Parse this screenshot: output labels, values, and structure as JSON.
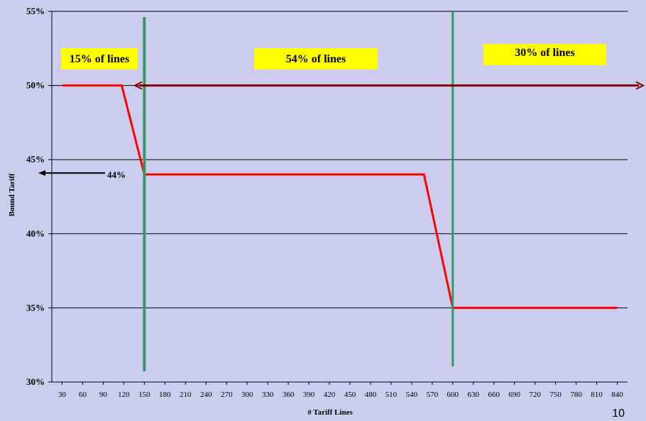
{
  "page_number": "10",
  "colors": {
    "background": "#ccccee",
    "line": "#ff0000",
    "divider": "#339966",
    "arrow_long": "#800000",
    "arrow_short": "#000000",
    "label_box": "#ffff00",
    "grid": "#000000"
  },
  "chart_data": {
    "type": "line",
    "xlabel": "# Tariff Lines",
    "ylabel": "Bound Tariff",
    "x_ticks": [
      30,
      60,
      90,
      120,
      150,
      180,
      210,
      240,
      270,
      300,
      330,
      360,
      390,
      420,
      450,
      480,
      510,
      540,
      570,
      600,
      630,
      660,
      690,
      720,
      750,
      780,
      810,
      840
    ],
    "x_tick_labels": [
      "30",
      "60",
      "90",
      "120",
      "150",
      "180",
      "210",
      "240",
      "270",
      "300",
      "330",
      "360",
      "390",
      "420",
      "450",
      "480",
      "510",
      "540",
      "570",
      "600",
      "630",
      "660",
      "690",
      "720",
      "750",
      "780",
      "810",
      "840"
    ],
    "xlim": [
      15,
      855
    ],
    "ylim": [
      30,
      55
    ],
    "y_ticks": [
      30,
      35,
      40,
      45,
      50,
      55
    ],
    "y_tick_labels": [
      "30%",
      "35%",
      "40%",
      "45%",
      "50%",
      "55%"
    ],
    "grid": "horizontal",
    "legend": "none",
    "series": [
      {
        "points": [
          [
            30,
            50
          ],
          [
            117,
            50
          ],
          [
            150,
            44
          ],
          [
            558,
            44
          ],
          [
            600,
            35
          ],
          [
            840,
            35
          ]
        ]
      }
    ],
    "vertical_lines": [
      150,
      600
    ],
    "region_labels": [
      "15% of lines",
      "54% of lines",
      "30% of lines"
    ],
    "annotations": {
      "long_arrow_y": 50,
      "short_arrow_label": "44%",
      "short_arrow_y": 44
    }
  }
}
